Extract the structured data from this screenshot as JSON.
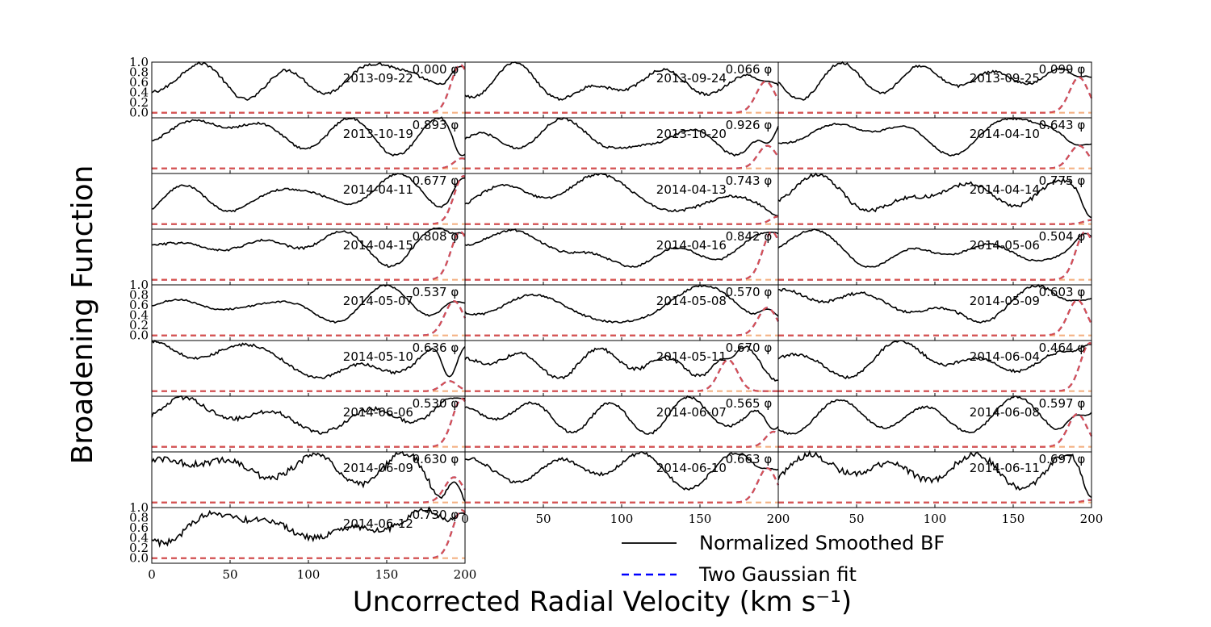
{
  "chart_data": {
    "type": "line",
    "xlabel": "Uncorrected Radial Velocity (km s⁻¹)",
    "ylabel": "Broadening Function",
    "xlim": [
      0,
      200
    ],
    "ylim": [
      -0.1,
      1.0
    ],
    "xticks": [
      "0",
      "50",
      "100",
      "150",
      "200"
    ],
    "yticks": [
      "0.0",
      "0.2",
      "0.4",
      "0.6",
      "0.8",
      "1.0"
    ],
    "phase_symbol": "φ",
    "legend": {
      "position": "lower-right",
      "entries": [
        {
          "label": "Normalized Smoothed BF",
          "style": "solid",
          "color": "#000000"
        },
        {
          "label": "Two Gaussian fit",
          "style": "dashed",
          "color": "#0000ff"
        }
      ]
    },
    "panels": [
      {
        "phase": "0.000",
        "date": "2013-09-22",
        "peak_x": 197,
        "peak_y": 0.95,
        "width": 6
      },
      {
        "phase": "0.066",
        "date": "2013-09-24",
        "peak_x": 192,
        "peak_y": 0.62,
        "width": 6
      },
      {
        "phase": "0.099",
        "date": "2013-09-25",
        "peak_x": 192,
        "peak_y": 0.7,
        "width": 6
      },
      {
        "phase": "0.893",
        "date": "2013-10-19",
        "peak_x": 198,
        "peak_y": 0.2,
        "width": 5
      },
      {
        "phase": "0.926",
        "date": "2013-10-20",
        "peak_x": 193,
        "peak_y": 0.45,
        "width": 6
      },
      {
        "phase": "0.643",
        "date": "2014-04-10",
        "peak_x": 192,
        "peak_y": 0.45,
        "width": 6
      },
      {
        "phase": "0.677",
        "date": "2014-04-11",
        "peak_x": 199,
        "peak_y": 0.95,
        "width": 6
      },
      {
        "phase": "0.743",
        "date": "2014-04-13",
        "peak_x": 200,
        "peak_y": 0.15,
        "width": 5
      },
      {
        "phase": "0.775",
        "date": "2014-04-14",
        "peak_x": 200,
        "peak_y": 0.08,
        "width": 5
      },
      {
        "phase": "0.808",
        "date": "2014-04-15",
        "peak_x": 197,
        "peak_y": 0.95,
        "width": 6
      },
      {
        "phase": "0.842",
        "date": "2014-04-16",
        "peak_x": 196,
        "peak_y": 0.95,
        "width": 6
      },
      {
        "phase": "0.504",
        "date": "2014-05-06",
        "peak_x": 196,
        "peak_y": 0.95,
        "width": 6
      },
      {
        "phase": "0.537",
        "date": "2014-05-07",
        "peak_x": 193,
        "peak_y": 0.68,
        "width": 6
      },
      {
        "phase": "0.570",
        "date": "2014-05-08",
        "peak_x": 193,
        "peak_y": 0.55,
        "width": 6
      },
      {
        "phase": "0.603",
        "date": "2014-05-09",
        "peak_x": 191,
        "peak_y": 0.7,
        "width": 6
      },
      {
        "phase": "0.636",
        "date": "2014-05-10",
        "peak_x": 190,
        "peak_y": 0.2,
        "width": 5
      },
      {
        "phase": "0.670",
        "date": "2014-05-11",
        "peak_x": 168,
        "peak_y": 0.62,
        "width": 6
      },
      {
        "phase": "0.464",
        "date": "2014-06-04",
        "peak_x": 199,
        "peak_y": 0.95,
        "width": 6
      },
      {
        "phase": "0.530",
        "date": "2014-06-06",
        "peak_x": 198,
        "peak_y": 0.95,
        "width": 6
      },
      {
        "phase": "0.565",
        "date": "2014-06-07",
        "peak_x": 197,
        "peak_y": 0.3,
        "width": 5
      },
      {
        "phase": "0.597",
        "date": "2014-06-08",
        "peak_x": 191,
        "peak_y": 0.65,
        "width": 6
      },
      {
        "phase": "0.630",
        "date": "2014-06-09",
        "peak_x": 193,
        "peak_y": 0.5,
        "width": 6
      },
      {
        "phase": "0.663",
        "date": "2014-06-10",
        "peak_x": 193,
        "peak_y": 0.68,
        "width": 6
      },
      {
        "phase": "0.697",
        "date": "2014-06-11",
        "peak_x": 200,
        "peak_y": 0.05,
        "width": 5
      },
      {
        "phase": "0.730",
        "date": "2014-06-12",
        "peak_x": 198,
        "peak_y": 0.95,
        "width": 6
      }
    ]
  }
}
